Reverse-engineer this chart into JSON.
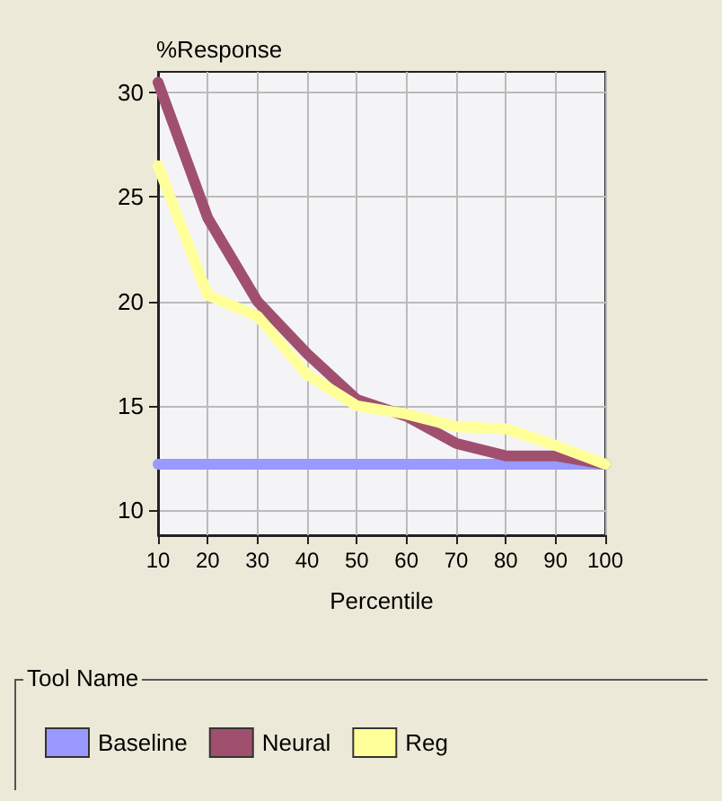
{
  "chart_data": {
    "type": "line",
    "xlabel": "Percentile",
    "ylabel": "%Response",
    "legend_title": "Tool Name",
    "x": [
      10,
      20,
      30,
      40,
      50,
      60,
      70,
      80,
      90,
      100
    ],
    "xlim": [
      10,
      100
    ],
    "xticks": [
      10,
      20,
      30,
      40,
      50,
      60,
      70,
      80,
      90,
      100
    ],
    "ylim": [
      8.8,
      31
    ],
    "yticks": [
      10,
      15,
      20,
      25,
      30
    ],
    "grid": true,
    "legend": "bottom",
    "marker": "none",
    "series": [
      {
        "name": "Baseline",
        "color": "#9999ff",
        "values": [
          12.2,
          12.2,
          12.2,
          12.2,
          12.2,
          12.2,
          12.2,
          12.2,
          12.2,
          12.2
        ]
      },
      {
        "name": "Neural",
        "color": "#a0506e",
        "values": [
          30.5,
          24,
          20,
          17.5,
          15.3,
          14.5,
          13.2,
          12.6,
          12.6,
          12.2
        ]
      },
      {
        "name": "Reg",
        "color": "#ffff99",
        "values": [
          26.5,
          20.3,
          19.3,
          16.5,
          15,
          14.6,
          14,
          13.9,
          13.1,
          12.2
        ]
      }
    ]
  }
}
